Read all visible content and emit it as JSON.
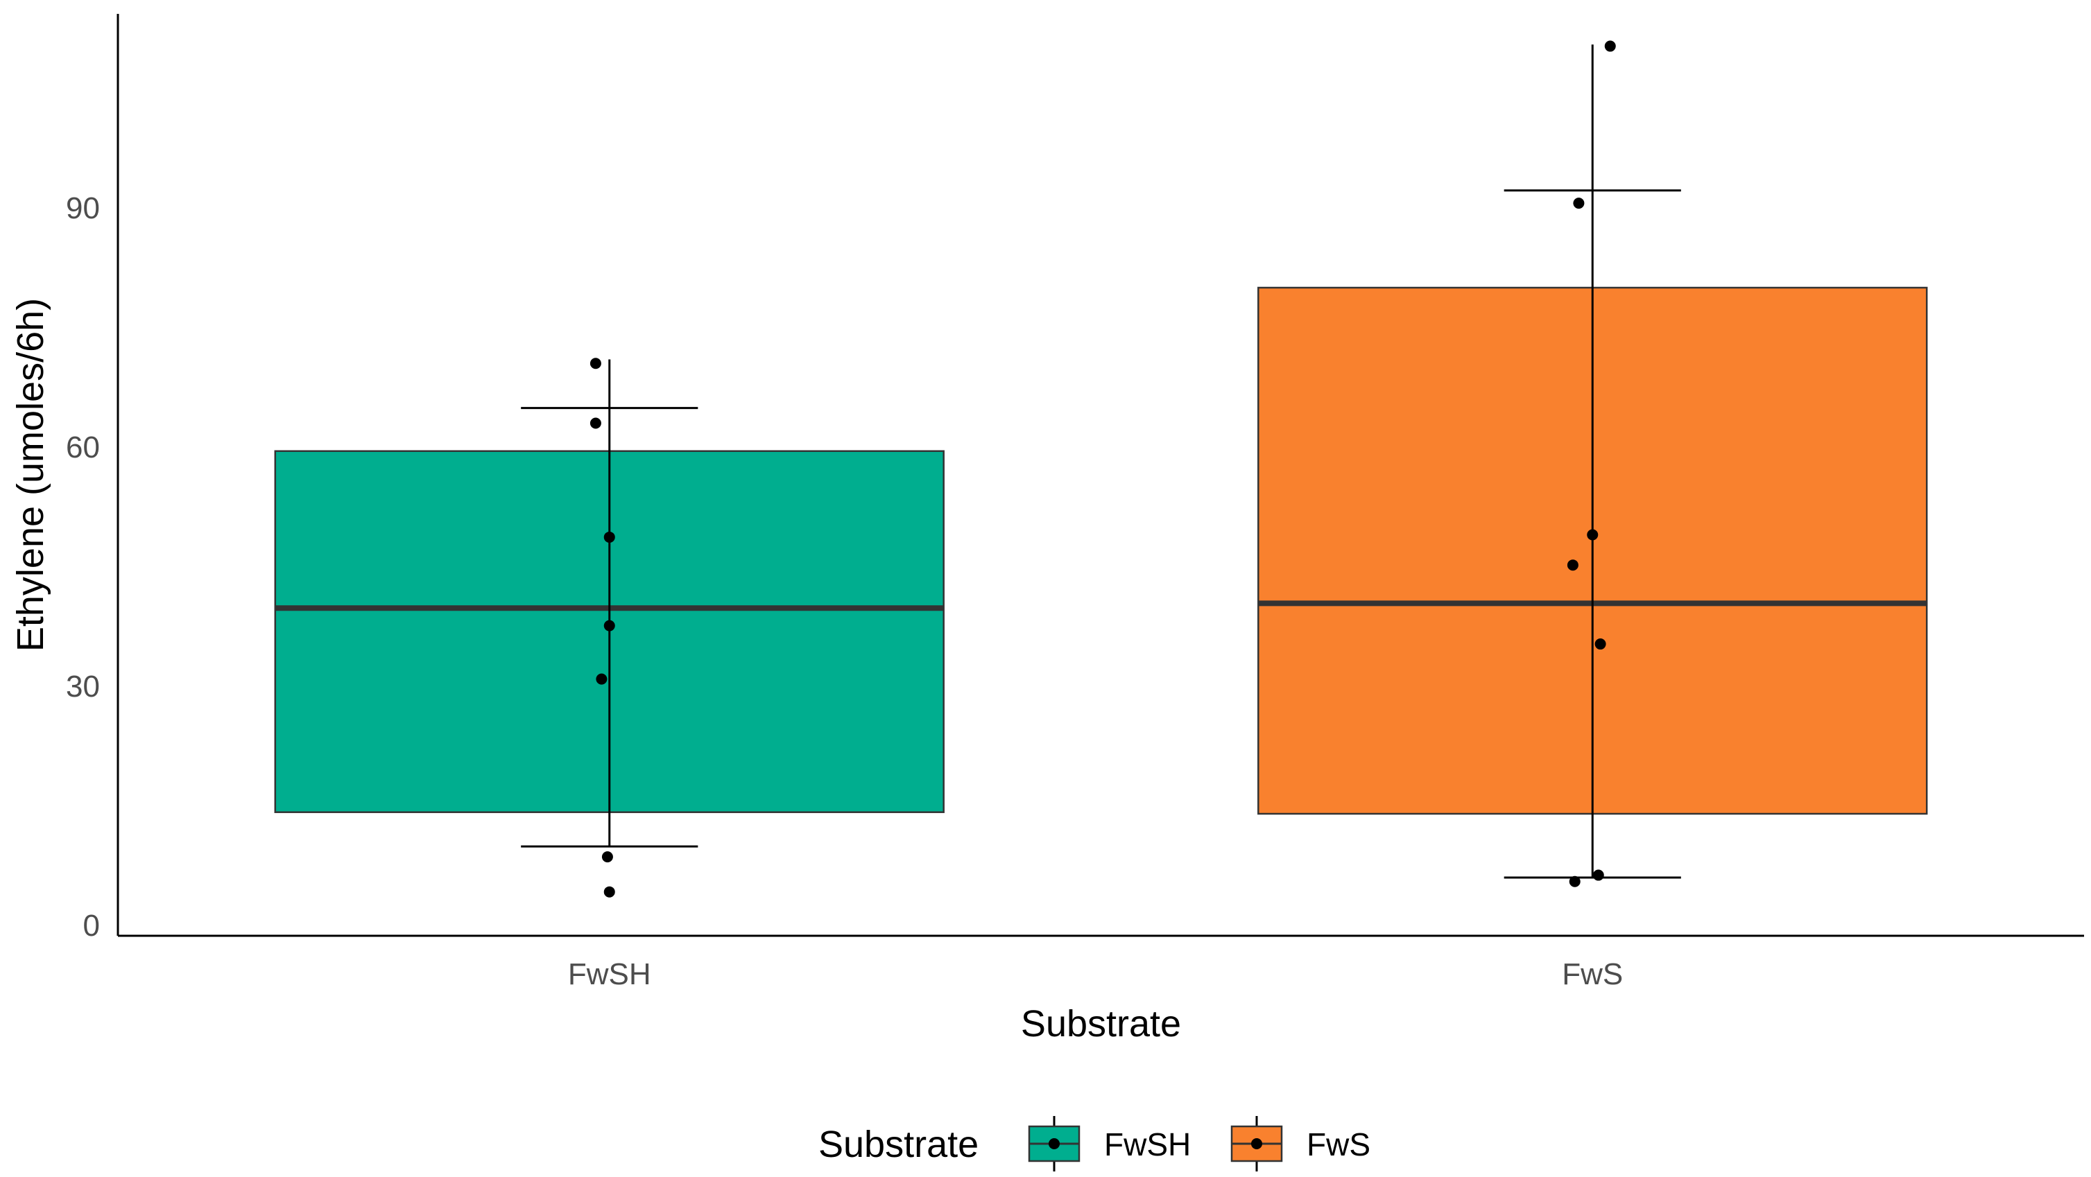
{
  "chart_data": {
    "type": "boxplot",
    "title": "",
    "xlabel": "Substrate",
    "ylabel": "Ethylene (umoles/6h)",
    "ylim": [
      0,
      112
    ],
    "yticks": [
      0,
      30,
      60,
      90
    ],
    "grid": false,
    "legend": {
      "title": "Substrate",
      "position": "bottom",
      "entries": [
        {
          "label": "FwSH",
          "color": "#00AE8F"
        },
        {
          "label": "FwS",
          "color": "#F9812E"
        }
      ]
    },
    "series": [
      {
        "name": "FwSH",
        "color": "#00AE8F",
        "whisker_low": 9.9,
        "q1": 14.2,
        "median": 39.8,
        "q3": 59.5,
        "whisker_high": 64.9,
        "error_high": 71.0,
        "points": [
          {
            "value": 70.5,
            "jitter": -0.07
          },
          {
            "value": 63.0,
            "jitter": -0.07
          },
          {
            "value": 48.7,
            "jitter": 0.0
          },
          {
            "value": 37.6,
            "jitter": 0.0
          },
          {
            "value": 30.9,
            "jitter": -0.04
          },
          {
            "value": 8.6,
            "jitter": -0.01
          },
          {
            "value": 4.2,
            "jitter": 0.0
          }
        ]
      },
      {
        "name": "FwS",
        "color": "#F9812E",
        "whisker_low": 6.0,
        "q1": 14.0,
        "median": 40.4,
        "q3": 80.0,
        "whisker_high": 92.2,
        "error_high": 110.5,
        "points": [
          {
            "value": 110.3,
            "jitter": 0.09
          },
          {
            "value": 90.6,
            "jitter": -0.07
          },
          {
            "value": 49.0,
            "jitter": 0.0
          },
          {
            "value": 45.2,
            "jitter": -0.1
          },
          {
            "value": 35.3,
            "jitter": 0.04
          },
          {
            "value": 5.5,
            "jitter": -0.09
          },
          {
            "value": 6.3,
            "jitter": 0.03
          }
        ]
      }
    ]
  }
}
